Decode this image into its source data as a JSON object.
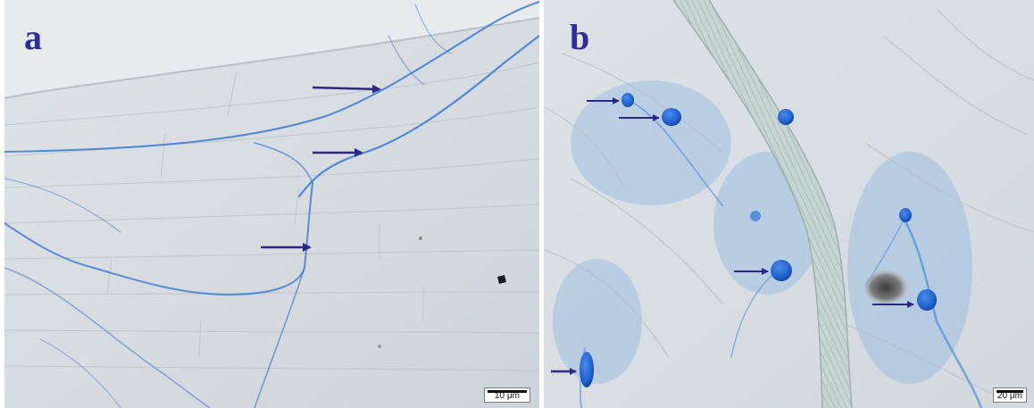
{
  "figure": {
    "panels": [
      {
        "letter": "a",
        "scale_label": "10 μm"
      },
      {
        "letter": "b",
        "scale_label": "20 μm"
      }
    ],
    "colors": {
      "stain_blue": "#3a78d6",
      "arrow": "#2a2a86",
      "letter": "#2c2d9a"
    }
  }
}
